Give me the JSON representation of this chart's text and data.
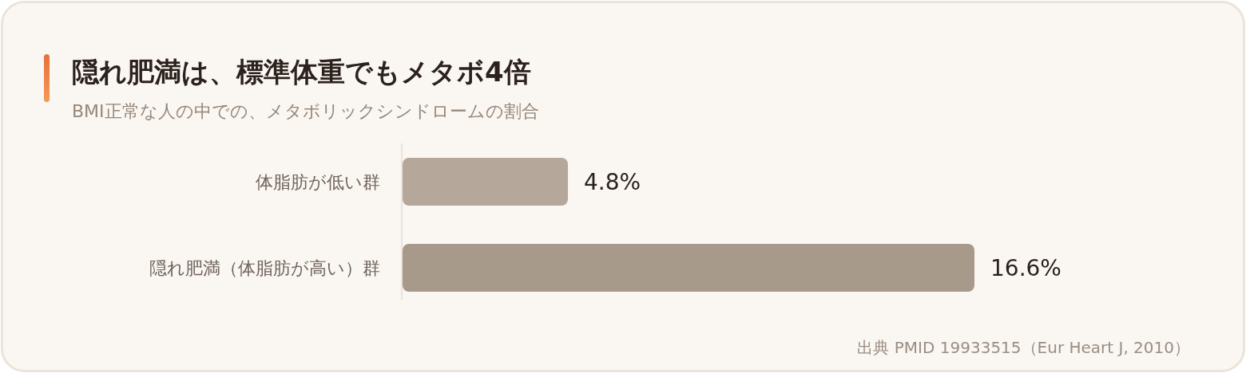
{
  "chart_data": {
    "type": "bar",
    "orientation": "horizontal",
    "title": "隠れ肥満は、標準体重でもメタボ4倍",
    "subtitle": "BMI正常な人の中での、メタボリックシンドロームの割合",
    "categories": [
      "体脂肪が低い群",
      "隠れ肥満（体脂肪が高い）群"
    ],
    "values": [
      4.8,
      16.6
    ],
    "colors": [
      "#b5a89b",
      "#a89a8b"
    ],
    "value_labels": [
      "4.8%",
      "16.6%"
    ],
    "annotations": [
      "出典 PMID 19933515（Eur Heart J, 2010）"
    ]
  }
}
